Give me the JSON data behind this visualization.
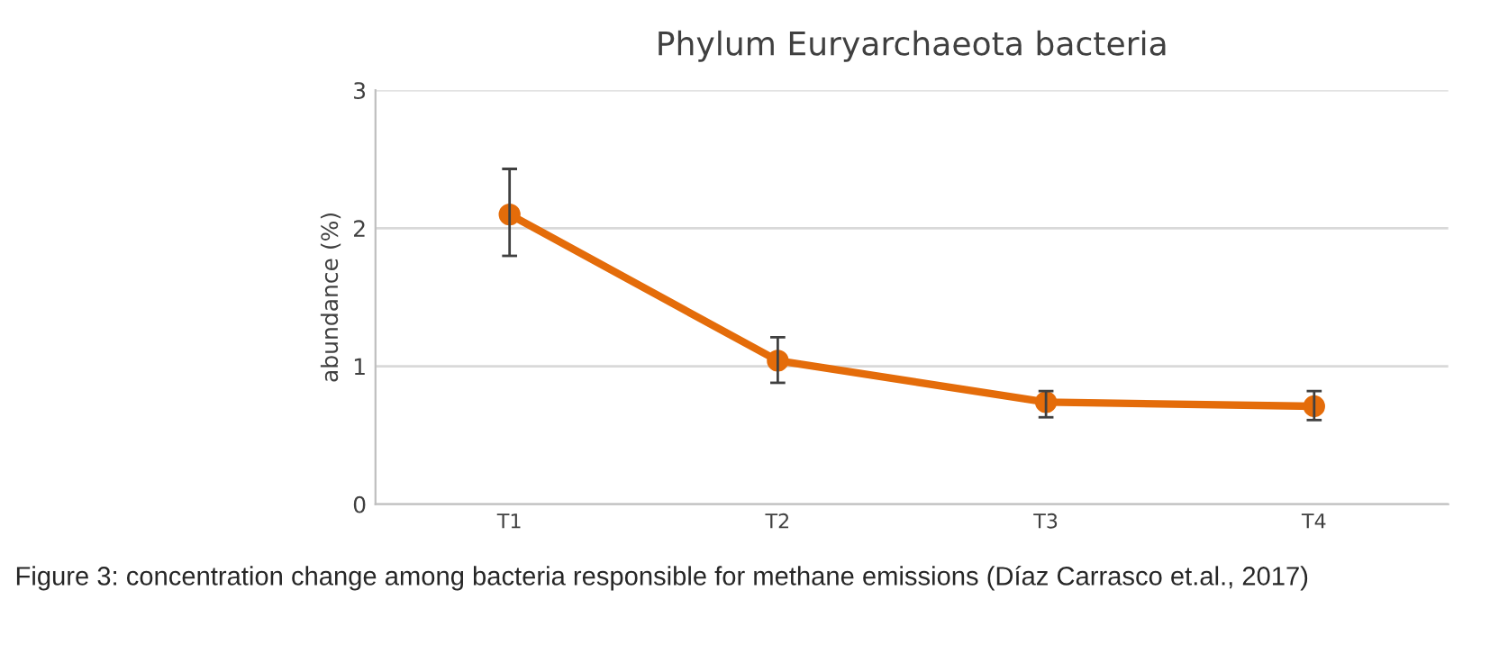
{
  "chart_data": {
    "type": "line",
    "title": "Phylum Euryarchaeota bacteria",
    "ylabel": "abundance (%)",
    "categories": [
      "T1",
      "T2",
      "T3",
      "T4"
    ],
    "series": [
      {
        "color": "#e46c0a",
        "values": [
          2.1,
          1.04,
          0.74,
          0.71
        ],
        "errors": [
          [
            1.8,
            2.43
          ],
          [
            0.88,
            1.21
          ],
          [
            0.63,
            0.82
          ],
          [
            0.61,
            0.82
          ]
        ]
      }
    ],
    "ylim": [
      0,
      3
    ],
    "yticks": [
      0,
      1,
      2,
      3
    ],
    "grid": "y",
    "marker": "circle",
    "line_style": "solid",
    "annotations": [
      "Figure 3: concentration change among bacteria responsible for methane emissions (Díaz Carrasco et.al., 2017)"
    ]
  }
}
